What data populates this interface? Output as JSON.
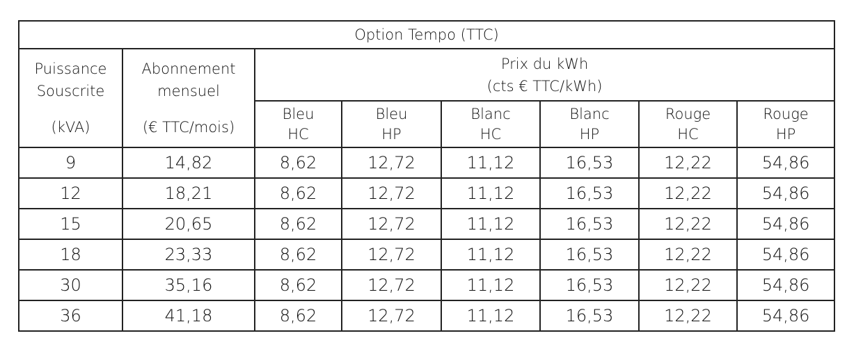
{
  "title": "Option Tempo (TTC)",
  "header": {
    "power": [
      "Puissance",
      "Souscrite",
      "(kVA)"
    ],
    "subscription": [
      "Abonnement",
      "mensuel",
      "(€ TTC/mois)"
    ],
    "price": [
      "Prix du kWh",
      "(cts € TTC/kWh)"
    ],
    "price_columns": [
      [
        "Bleu",
        "HC"
      ],
      [
        "Bleu",
        "HP"
      ],
      [
        "Blanc",
        "HC"
      ],
      [
        "Blanc",
        "HP"
      ],
      [
        "Rouge",
        "HC"
      ],
      [
        "Rouge",
        "HP"
      ]
    ]
  },
  "rows": [
    [
      "9",
      "14,82",
      "8,62",
      "12,72",
      "11,12",
      "16,53",
      "12,22",
      "54,86"
    ],
    [
      "12",
      "18,21",
      "8,62",
      "12,72",
      "11,12",
      "16,53",
      "12,22",
      "54,86"
    ],
    [
      "15",
      "20,65",
      "8,62",
      "12,72",
      "11,12",
      "16,53",
      "12,22",
      "54,86"
    ],
    [
      "18",
      "23,33",
      "8,62",
      "12,72",
      "11,12",
      "16,53",
      "12,22",
      "54,86"
    ],
    [
      "30",
      "35,16",
      "8,62",
      "12,72",
      "11,12",
      "16,53",
      "12,22",
      "54,86"
    ],
    [
      "36",
      "41,18",
      "8,62",
      "12,72",
      "11,12",
      "16,53",
      "12,22",
      "54,86"
    ]
  ]
}
